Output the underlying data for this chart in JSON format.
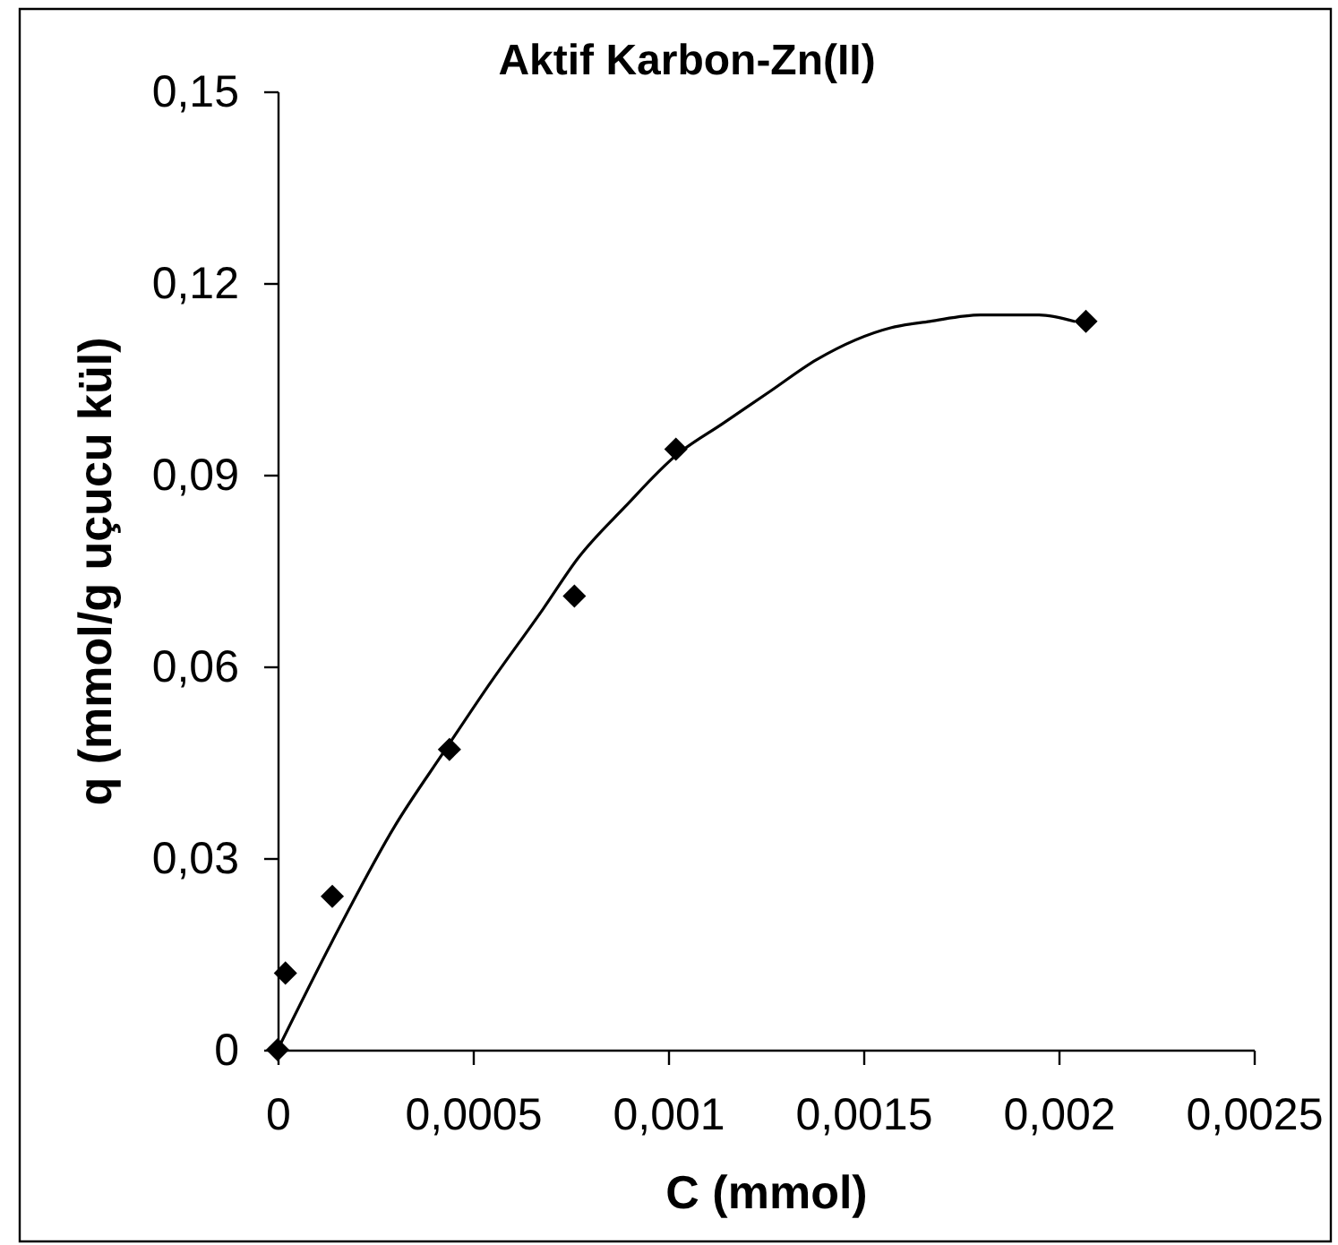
{
  "chart_data": {
    "type": "scatter",
    "title": "Aktif Karbon-Zn(II)",
    "xlabel": "C (mmol)",
    "ylabel": "q (mmol/g uçucu kül)",
    "xlim": [
      0,
      0.0025
    ],
    "ylim": [
      0,
      0.15
    ],
    "xticks": [
      0,
      {
        "value": 0.0005,
        "label": "0,0005"
      },
      {
        "value": 0.001,
        "label": "0,001"
      },
      {
        "value": 0.0015,
        "label": "0,0015"
      },
      {
        "value": 0.002,
        "label": "0,002"
      },
      {
        "value": 0.0025,
        "label": "0,0025"
      }
    ],
    "yticks": [
      0,
      {
        "value": 0.03,
        "label": "0,03"
      },
      {
        "value": 0.06,
        "label": "0,06"
      },
      {
        "value": 0.09,
        "label": "0,09"
      },
      {
        "value": 0.12,
        "label": "0,12"
      },
      {
        "value": 0.15,
        "label": "0,15"
      }
    ],
    "grid": false,
    "legend": false,
    "series": [
      {
        "type": "line",
        "color": "#000000",
        "marker": "none",
        "line_style": "solid",
        "x": [
          0,
          0.00014,
          0.0003,
          0.00043,
          0.00054,
          0.00068,
          0.00077,
          0.00089,
          0.00102,
          0.00114,
          0.00126,
          0.00138,
          0.00157,
          0.00167,
          0.0018,
          0.00195,
          0.00204
        ],
        "values": [
          0,
          0.017,
          0.035,
          0.047,
          0.057,
          0.069,
          0.077,
          0.085,
          0.093,
          0.098,
          0.103,
          0.108,
          0.113,
          0.114,
          0.115,
          0.115,
          0.114
        ]
      },
      {
        "color": "#000000",
        "marker": "diamond",
        "x": [
          0,
          2e-05,
          0.00014,
          0.00044,
          0.00076,
          0.00102,
          0.00207
        ],
        "values": [
          0,
          0.012,
          0.024,
          0.047,
          0.071,
          0.094,
          0.114
        ]
      }
    ]
  }
}
